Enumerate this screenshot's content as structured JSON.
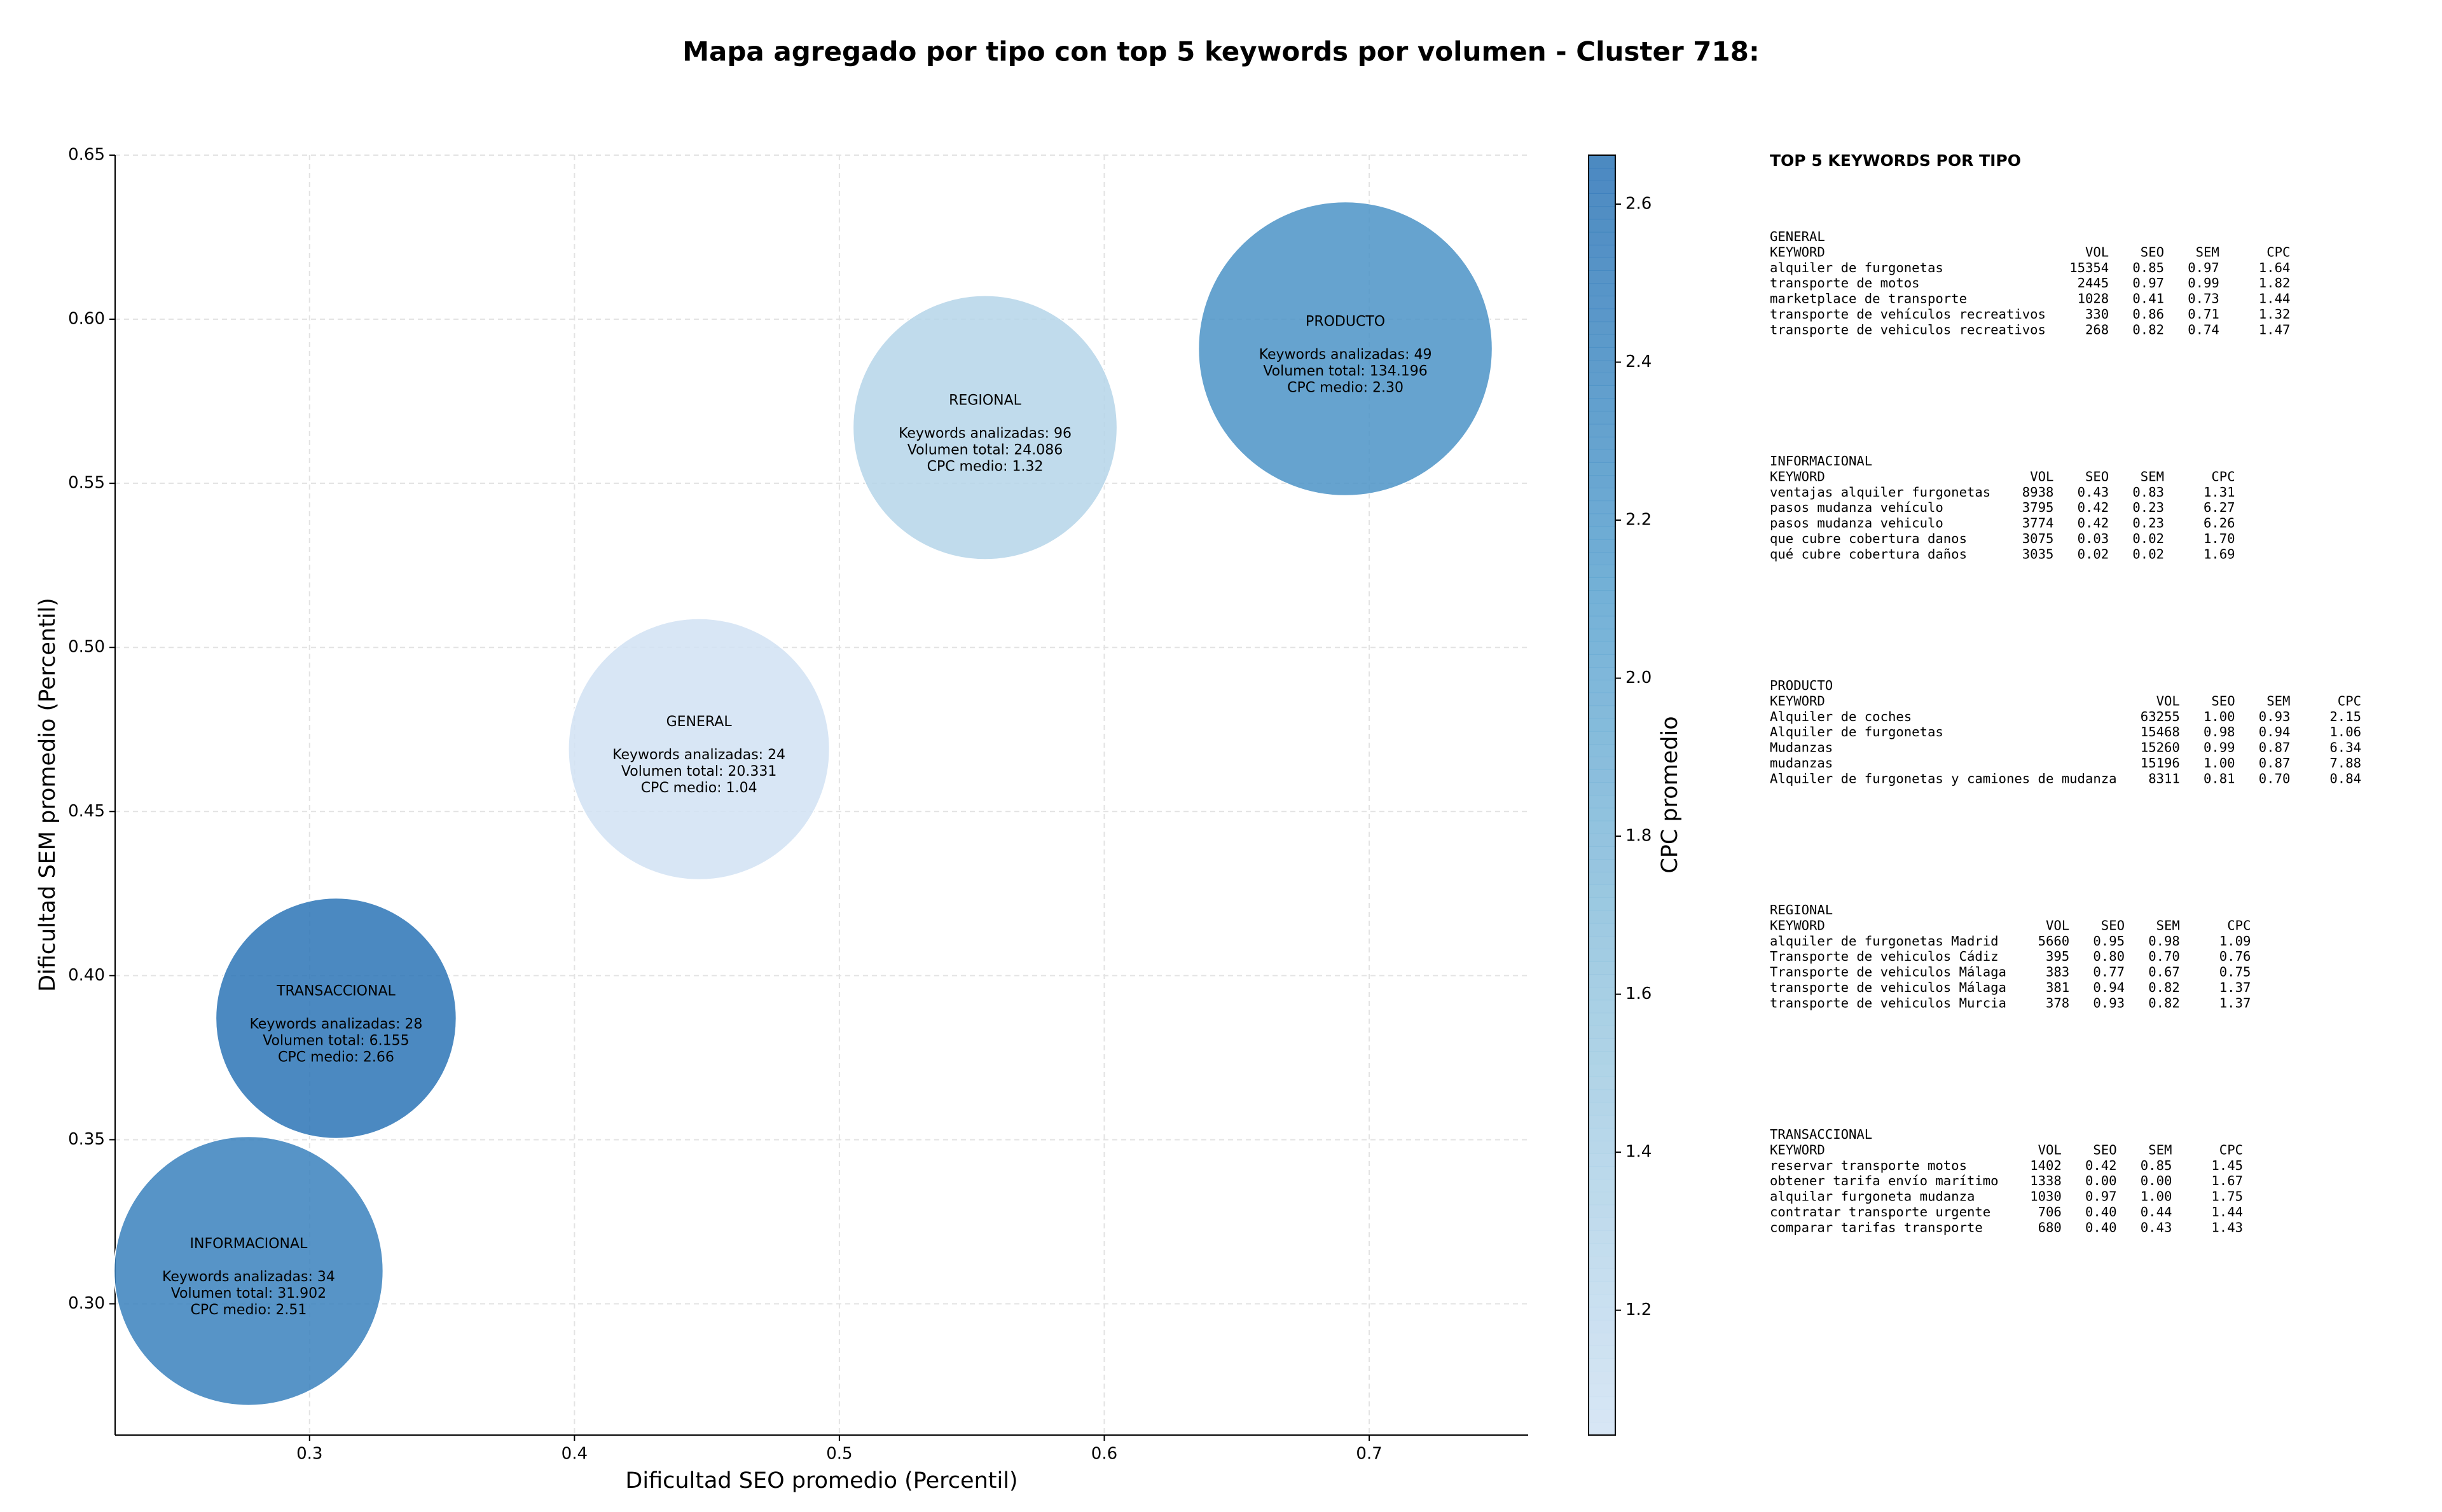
{
  "chart_data": {
    "type": "bubble",
    "title": "Mapa agregado por tipo con top 5 keywords por volumen - Cluster 718:",
    "xlabel": "Dificultad SEO promedio (Percentil)",
    "ylabel": "Dificultad SEM promedio (Percentil)",
    "colorbar_label": "CPC promedio",
    "xlim": [
      0.2266,
      0.76
    ],
    "ylim": [
      0.26,
      0.65
    ],
    "xticks": [
      0.3,
      0.4,
      0.5,
      0.6,
      0.7
    ],
    "yticks": [
      {
        "value": 0.3,
        "label": "0.30"
      },
      {
        "value": 0.35,
        "label": "0.35"
      },
      {
        "value": 0.4,
        "label": "0.40"
      },
      {
        "value": 0.45,
        "label": "0.45"
      },
      {
        "value": 0.5,
        "label": "0.50"
      },
      {
        "value": 0.55,
        "label": "0.55"
      },
      {
        "value": 0.6,
        "label": "0.60"
      },
      {
        "value": 0.65,
        "label": "0.65"
      }
    ],
    "clim": [
      1.042,
      2.662
    ],
    "cticks": [
      1.2,
      1.4,
      1.6,
      1.8,
      {
        "value": 2.0,
        "label": "2.0"
      },
      2.2,
      2.4,
      2.6
    ],
    "colormap": [
      "#d1e2f3",
      "#9ac8e0",
      "#5aa2cf",
      "#2c74b6"
    ],
    "grid": true,
    "series": [
      {
        "name": "GENERAL",
        "x": 0.447,
        "y": 0.469,
        "size": 20331,
        "cpc": 1.04,
        "labels": [
          "Keywords analizadas: 24",
          "Volumen total: 20.331",
          "CPC medio: 1.04"
        ]
      },
      {
        "name": "INFORMACIONAL",
        "x": 0.277,
        "y": 0.31,
        "size": 31902,
        "cpc": 2.51,
        "labels": [
          "Keywords analizadas: 34",
          "Volumen total: 31.902",
          "CPC medio: 2.51"
        ]
      },
      {
        "name": "TRANSACCIONAL",
        "x": 0.31,
        "y": 0.387,
        "size": 6155,
        "cpc": 2.66,
        "labels": [
          "Keywords analizadas: 28",
          "Volumen total: 6.155",
          "CPC medio: 2.66"
        ]
      },
      {
        "name": "REGIONAL",
        "x": 0.555,
        "y": 0.567,
        "size": 24086,
        "cpc": 1.32,
        "labels": [
          "Keywords analizadas: 96",
          "Volumen total: 24.086",
          "CPC medio: 1.32"
        ]
      },
      {
        "name": "PRODUCTO",
        "x": 0.691,
        "y": 0.591,
        "size": 134196,
        "cpc": 2.3,
        "labels": [
          "Keywords analizadas: 49",
          "Volumen total: 134.196",
          "CPC medio: 2.30"
        ]
      }
    ]
  },
  "side_panel": {
    "title": "TOP 5 KEYWORDS POR TIPO",
    "columns": [
      "KEYWORD",
      "VOL",
      "SEO",
      "SEM",
      "CPC"
    ],
    "groups": [
      {
        "name": "GENERAL",
        "rows": [
          [
            "alquiler de furgonetas",
            "15354",
            "0.85",
            "0.97",
            "1.64"
          ],
          [
            "transporte de motos",
            "2445",
            "0.97",
            "0.99",
            "1.82"
          ],
          [
            "marketplace de transporte",
            "1028",
            "0.41",
            "0.73",
            "1.44"
          ],
          [
            "transporte de vehículos recreativos",
            "330",
            "0.86",
            "0.71",
            "1.32"
          ],
          [
            "transporte de vehiculos recreativos",
            "268",
            "0.82",
            "0.74",
            "1.47"
          ]
        ]
      },
      {
        "name": "INFORMACIONAL",
        "rows": [
          [
            "ventajas alquiler furgonetas",
            "8938",
            "0.43",
            "0.83",
            "1.31"
          ],
          [
            "pasos mudanza vehículo",
            "3795",
            "0.42",
            "0.23",
            "6.27"
          ],
          [
            "pasos mudanza vehiculo",
            "3774",
            "0.42",
            "0.23",
            "6.26"
          ],
          [
            "que cubre cobertura danos",
            "3075",
            "0.03",
            "0.02",
            "1.70"
          ],
          [
            "qué cubre cobertura daños",
            "3035",
            "0.02",
            "0.02",
            "1.69"
          ]
        ]
      },
      {
        "name": "PRODUCTO",
        "rows": [
          [
            "Alquiler de coches",
            "63255",
            "1.00",
            "0.93",
            "2.15"
          ],
          [
            "Alquiler de furgonetas",
            "15468",
            "0.98",
            "0.94",
            "1.06"
          ],
          [
            "Mudanzas",
            "15260",
            "0.99",
            "0.87",
            "6.34"
          ],
          [
            "mudanzas",
            "15196",
            "1.00",
            "0.87",
            "7.88"
          ],
          [
            "Alquiler de furgonetas y camiones de mudanza",
            "8311",
            "0.81",
            "0.70",
            "0.84"
          ]
        ]
      },
      {
        "name": "REGIONAL",
        "rows": [
          [
            "alquiler de furgonetas Madrid",
            "5660",
            "0.95",
            "0.98",
            "1.09"
          ],
          [
            "Transporte de vehiculos Cádiz",
            "395",
            "0.80",
            "0.70",
            "0.76"
          ],
          [
            "Transporte de vehiculos Málaga",
            "383",
            "0.77",
            "0.67",
            "0.75"
          ],
          [
            "transporte de vehiculos Málaga",
            "381",
            "0.94",
            "0.82",
            "1.37"
          ],
          [
            "transporte de vehiculos Murcia",
            "378",
            "0.93",
            "0.82",
            "1.37"
          ]
        ]
      },
      {
        "name": "TRANSACCIONAL",
        "rows": [
          [
            "reservar transporte motos",
            "1402",
            "0.42",
            "0.85",
            "1.45"
          ],
          [
            "obtener tarifa envío marítimo",
            "1338",
            "0.00",
            "0.00",
            "1.67"
          ],
          [
            "alquilar furgoneta mudanza",
            "1030",
            "0.97",
            "1.00",
            "1.75"
          ],
          [
            "contratar transporte urgente",
            "706",
            "0.40",
            "0.44",
            "1.44"
          ],
          [
            "comparar tarifas transporte",
            "680",
            "0.40",
            "0.43",
            "1.43"
          ]
        ]
      }
    ]
  }
}
